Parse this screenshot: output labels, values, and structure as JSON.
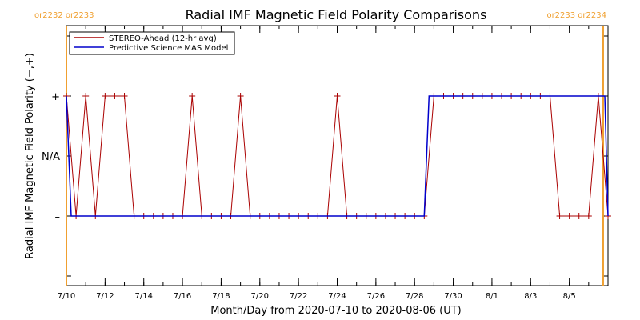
{
  "chart_data": {
    "type": "line",
    "title": "Radial IMF Magnetic Field Polarity Comparisons",
    "xlabel": "Month/Day from 2020-07-10 to 2020-08-06 (UT)",
    "ylabel": "Radial IMF Magnetic Field Polarity (−,+)",
    "x_range": [
      "2020-07-10",
      "2020-08-07"
    ],
    "y_categories": [
      -1,
      0,
      1
    ],
    "y_tick_labels": [
      "–",
      "N/A",
      "+"
    ],
    "x_tick_labels": [
      "7/10",
      "7/12",
      "7/14",
      "7/16",
      "7/18",
      "7/20",
      "7/22",
      "7/24",
      "7/26",
      "7/28",
      "7/30",
      "8/1",
      "8/3",
      "8/5"
    ],
    "x_tick_dates": [
      "2020-07-10",
      "2020-07-12",
      "2020-07-14",
      "2020-07-16",
      "2020-07-18",
      "2020-07-20",
      "2020-07-22",
      "2020-07-24",
      "2020-07-26",
      "2020-07-28",
      "2020-07-30",
      "2020-08-01",
      "2020-08-03",
      "2020-08-05"
    ],
    "legend_position": "top-left",
    "grid": false,
    "carrington_markers": [
      {
        "date": "2020-07-10 00:00",
        "left_label": "or2232",
        "right_label": "or2233",
        "color": "#f0a030",
        "align": "left"
      },
      {
        "date": "2020-08-06 18:00",
        "left_label": "or2233",
        "right_label": "or2234",
        "color": "#f0a030",
        "align": "right"
      }
    ],
    "series": [
      {
        "name": "STEREO-Ahead (12-hr avg)",
        "color": "#aa0000",
        "markers": true,
        "points": [
          [
            "2020-07-10 00:00",
            1
          ],
          [
            "2020-07-10 12:00",
            -1
          ],
          [
            "2020-07-11 00:00",
            1
          ],
          [
            "2020-07-11 12:00",
            -1
          ],
          [
            "2020-07-12 00:00",
            1
          ],
          [
            "2020-07-12 12:00",
            1
          ],
          [
            "2020-07-13 00:00",
            1
          ],
          [
            "2020-07-13 12:00",
            -1
          ],
          [
            "2020-07-14 00:00",
            -1
          ],
          [
            "2020-07-14 12:00",
            -1
          ],
          [
            "2020-07-15 00:00",
            -1
          ],
          [
            "2020-07-15 12:00",
            -1
          ],
          [
            "2020-07-16 00:00",
            -1
          ],
          [
            "2020-07-16 12:00",
            1
          ],
          [
            "2020-07-17 00:00",
            -1
          ],
          [
            "2020-07-17 12:00",
            -1
          ],
          [
            "2020-07-18 00:00",
            -1
          ],
          [
            "2020-07-18 12:00",
            -1
          ],
          [
            "2020-07-19 00:00",
            1
          ],
          [
            "2020-07-19 12:00",
            -1
          ],
          [
            "2020-07-20 00:00",
            -1
          ],
          [
            "2020-07-20 12:00",
            -1
          ],
          [
            "2020-07-21 00:00",
            -1
          ],
          [
            "2020-07-21 12:00",
            -1
          ],
          [
            "2020-07-22 00:00",
            -1
          ],
          [
            "2020-07-22 12:00",
            -1
          ],
          [
            "2020-07-23 00:00",
            -1
          ],
          [
            "2020-07-23 12:00",
            -1
          ],
          [
            "2020-07-24 00:00",
            1
          ],
          [
            "2020-07-24 12:00",
            -1
          ],
          [
            "2020-07-25 00:00",
            -1
          ],
          [
            "2020-07-25 12:00",
            -1
          ],
          [
            "2020-07-26 00:00",
            -1
          ],
          [
            "2020-07-26 12:00",
            -1
          ],
          [
            "2020-07-27 00:00",
            -1
          ],
          [
            "2020-07-27 12:00",
            -1
          ],
          [
            "2020-07-28 00:00",
            -1
          ],
          [
            "2020-07-28 12:00",
            -1
          ],
          [
            "2020-07-29 00:00",
            1
          ],
          [
            "2020-07-29 12:00",
            1
          ],
          [
            "2020-07-30 00:00",
            1
          ],
          [
            "2020-07-30 12:00",
            1
          ],
          [
            "2020-07-31 00:00",
            1
          ],
          [
            "2020-07-31 12:00",
            1
          ],
          [
            "2020-08-01 00:00",
            1
          ],
          [
            "2020-08-01 12:00",
            1
          ],
          [
            "2020-08-02 00:00",
            1
          ],
          [
            "2020-08-02 12:00",
            1
          ],
          [
            "2020-08-03 00:00",
            1
          ],
          [
            "2020-08-03 12:00",
            1
          ],
          [
            "2020-08-04 00:00",
            1
          ],
          [
            "2020-08-04 12:00",
            -1
          ],
          [
            "2020-08-05 00:00",
            -1
          ],
          [
            "2020-08-05 12:00",
            -1
          ],
          [
            "2020-08-06 00:00",
            -1
          ],
          [
            "2020-08-06 12:00",
            1
          ],
          [
            "2020-08-07 00:00",
            -1
          ]
        ]
      },
      {
        "name": "Predictive Science MAS Model",
        "color": "#0000cc",
        "markers": false,
        "points": [
          [
            "2020-07-10 00:00",
            1
          ],
          [
            "2020-07-10 06:00",
            -1
          ],
          [
            "2020-07-28 12:00",
            -1
          ],
          [
            "2020-07-28 18:00",
            1
          ],
          [
            "2020-08-06 20:00",
            1
          ],
          [
            "2020-08-07 00:00",
            -1
          ]
        ]
      }
    ]
  }
}
